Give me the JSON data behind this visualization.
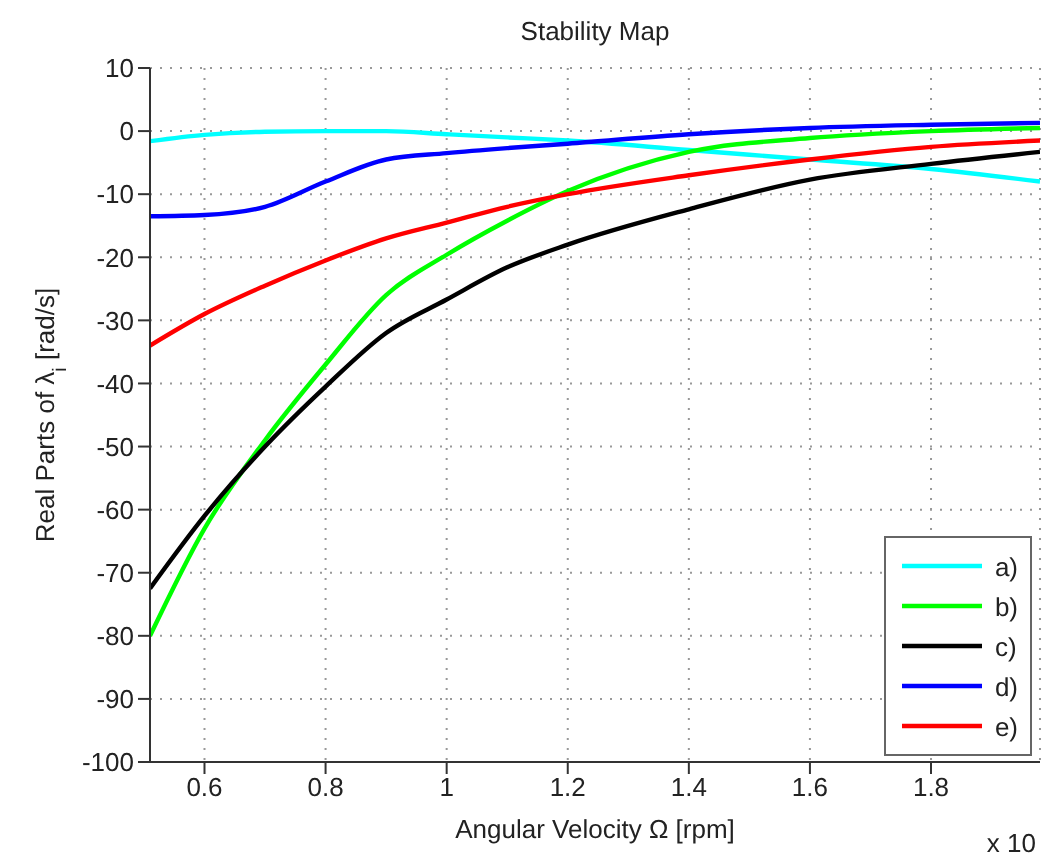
{
  "chart_data": {
    "type": "line",
    "title": "Stability Map",
    "xlabel": "Angular Velocity Ω [rpm]",
    "ylabel": "Real Parts of λ$_{i}$ [rad/s]",
    "x": [
      0.51,
      0.6,
      0.7,
      0.8,
      0.9,
      1.0,
      1.1,
      1.2,
      1.4,
      1.6,
      1.8,
      1.98
    ],
    "series": [
      {
        "name": "a)",
        "color": "#00ffff",
        "values": [
          -1.6,
          -0.6,
          -0.1,
          0,
          0,
          -0.5,
          -1,
          -1.5,
          -3,
          -4.5,
          -6,
          -8
        ]
      },
      {
        "name": "b)",
        "color": "#00ff00",
        "values": [
          -80,
          -63,
          -49,
          -37,
          -26,
          -19.6,
          -14.2,
          -9.5,
          -3.3,
          -1.1,
          0,
          0.5
        ]
      },
      {
        "name": "c)",
        "color": "#000000",
        "values": [
          -72.5,
          -61,
          -50,
          -40.5,
          -32,
          -26.7,
          -21.6,
          -18,
          -12.4,
          -7.7,
          -5.2,
          -3.3
        ]
      },
      {
        "name": "d)",
        "color": "#0000ff",
        "values": [
          -13.5,
          -13.3,
          -12,
          -8,
          -4.5,
          -3.5,
          -2.7,
          -2,
          -0.5,
          0.5,
          1,
          1.3
        ]
      },
      {
        "name": "e)",
        "color": "#ff0000",
        "values": [
          -34,
          -29,
          -24.5,
          -20.5,
          -17,
          -14.5,
          -12,
          -10,
          -7,
          -4.5,
          -2.5,
          -1.5
        ]
      }
    ],
    "xlim": [
      0.51,
      1.98
    ],
    "xticks": [
      {
        "value": 0.6,
        "label": "0.6"
      },
      {
        "value": 0.8,
        "label": "0.8"
      },
      1,
      {
        "value": 1.2,
        "label": "1.2"
      },
      {
        "value": 1.4,
        "label": "1.4"
      },
      {
        "value": 1.6,
        "label": "1.6"
      },
      {
        "value": 1.8,
        "label": "1.8"
      }
    ],
    "ylim": [
      -100,
      10
    ],
    "yticks": [
      -100,
      -90,
      -80,
      -70,
      -60,
      -50,
      -40,
      -30,
      -20,
      -10,
      0,
      10
    ],
    "annotations": [
      "x 10"
    ],
    "grid": true,
    "legend": "bottom right",
    "line_style": "solid",
    "marker": "none"
  }
}
